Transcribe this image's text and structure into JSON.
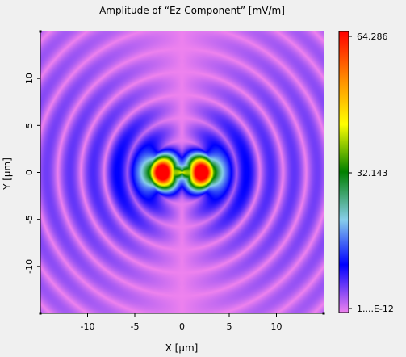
{
  "chart_data": {
    "type": "heatmap",
    "title": "Amplitude of “Ez-Component”  [mV/m]",
    "xlabel": "X [µm]",
    "ylabel": "Y [µm]",
    "xlim": [
      -15,
      15
    ],
    "ylim": [
      -15,
      15
    ],
    "x_ticks": [
      -10,
      -5,
      0,
      5,
      10
    ],
    "x_tick_labels": [
      "-10",
      "-5",
      "0",
      "5",
      "10"
    ],
    "y_ticks": [
      10,
      5,
      0,
      -5,
      -10
    ],
    "y_tick_labels": [
      "10",
      "5",
      "0",
      "-5",
      "-10"
    ],
    "field": {
      "peaks": [
        {
          "x": -2.1,
          "y": 0,
          "value": 64.286
        },
        {
          "x": 2.1,
          "y": 0,
          "value": 64.286
        }
      ],
      "null_line_x": 0,
      "ring_spacing_um": 4.9
    },
    "colorbar": {
      "min_label": "1....E-12",
      "mid_label": "32.143",
      "max_label": "64.286",
      "min": 1e-12,
      "mid": 32.143,
      "max": 64.286,
      "colors": [
        "#ff0000",
        "#ff8c00",
        "#ffff00",
        "#008000",
        "#87ceeb",
        "#0000ff",
        "#ee82ee"
      ]
    }
  }
}
